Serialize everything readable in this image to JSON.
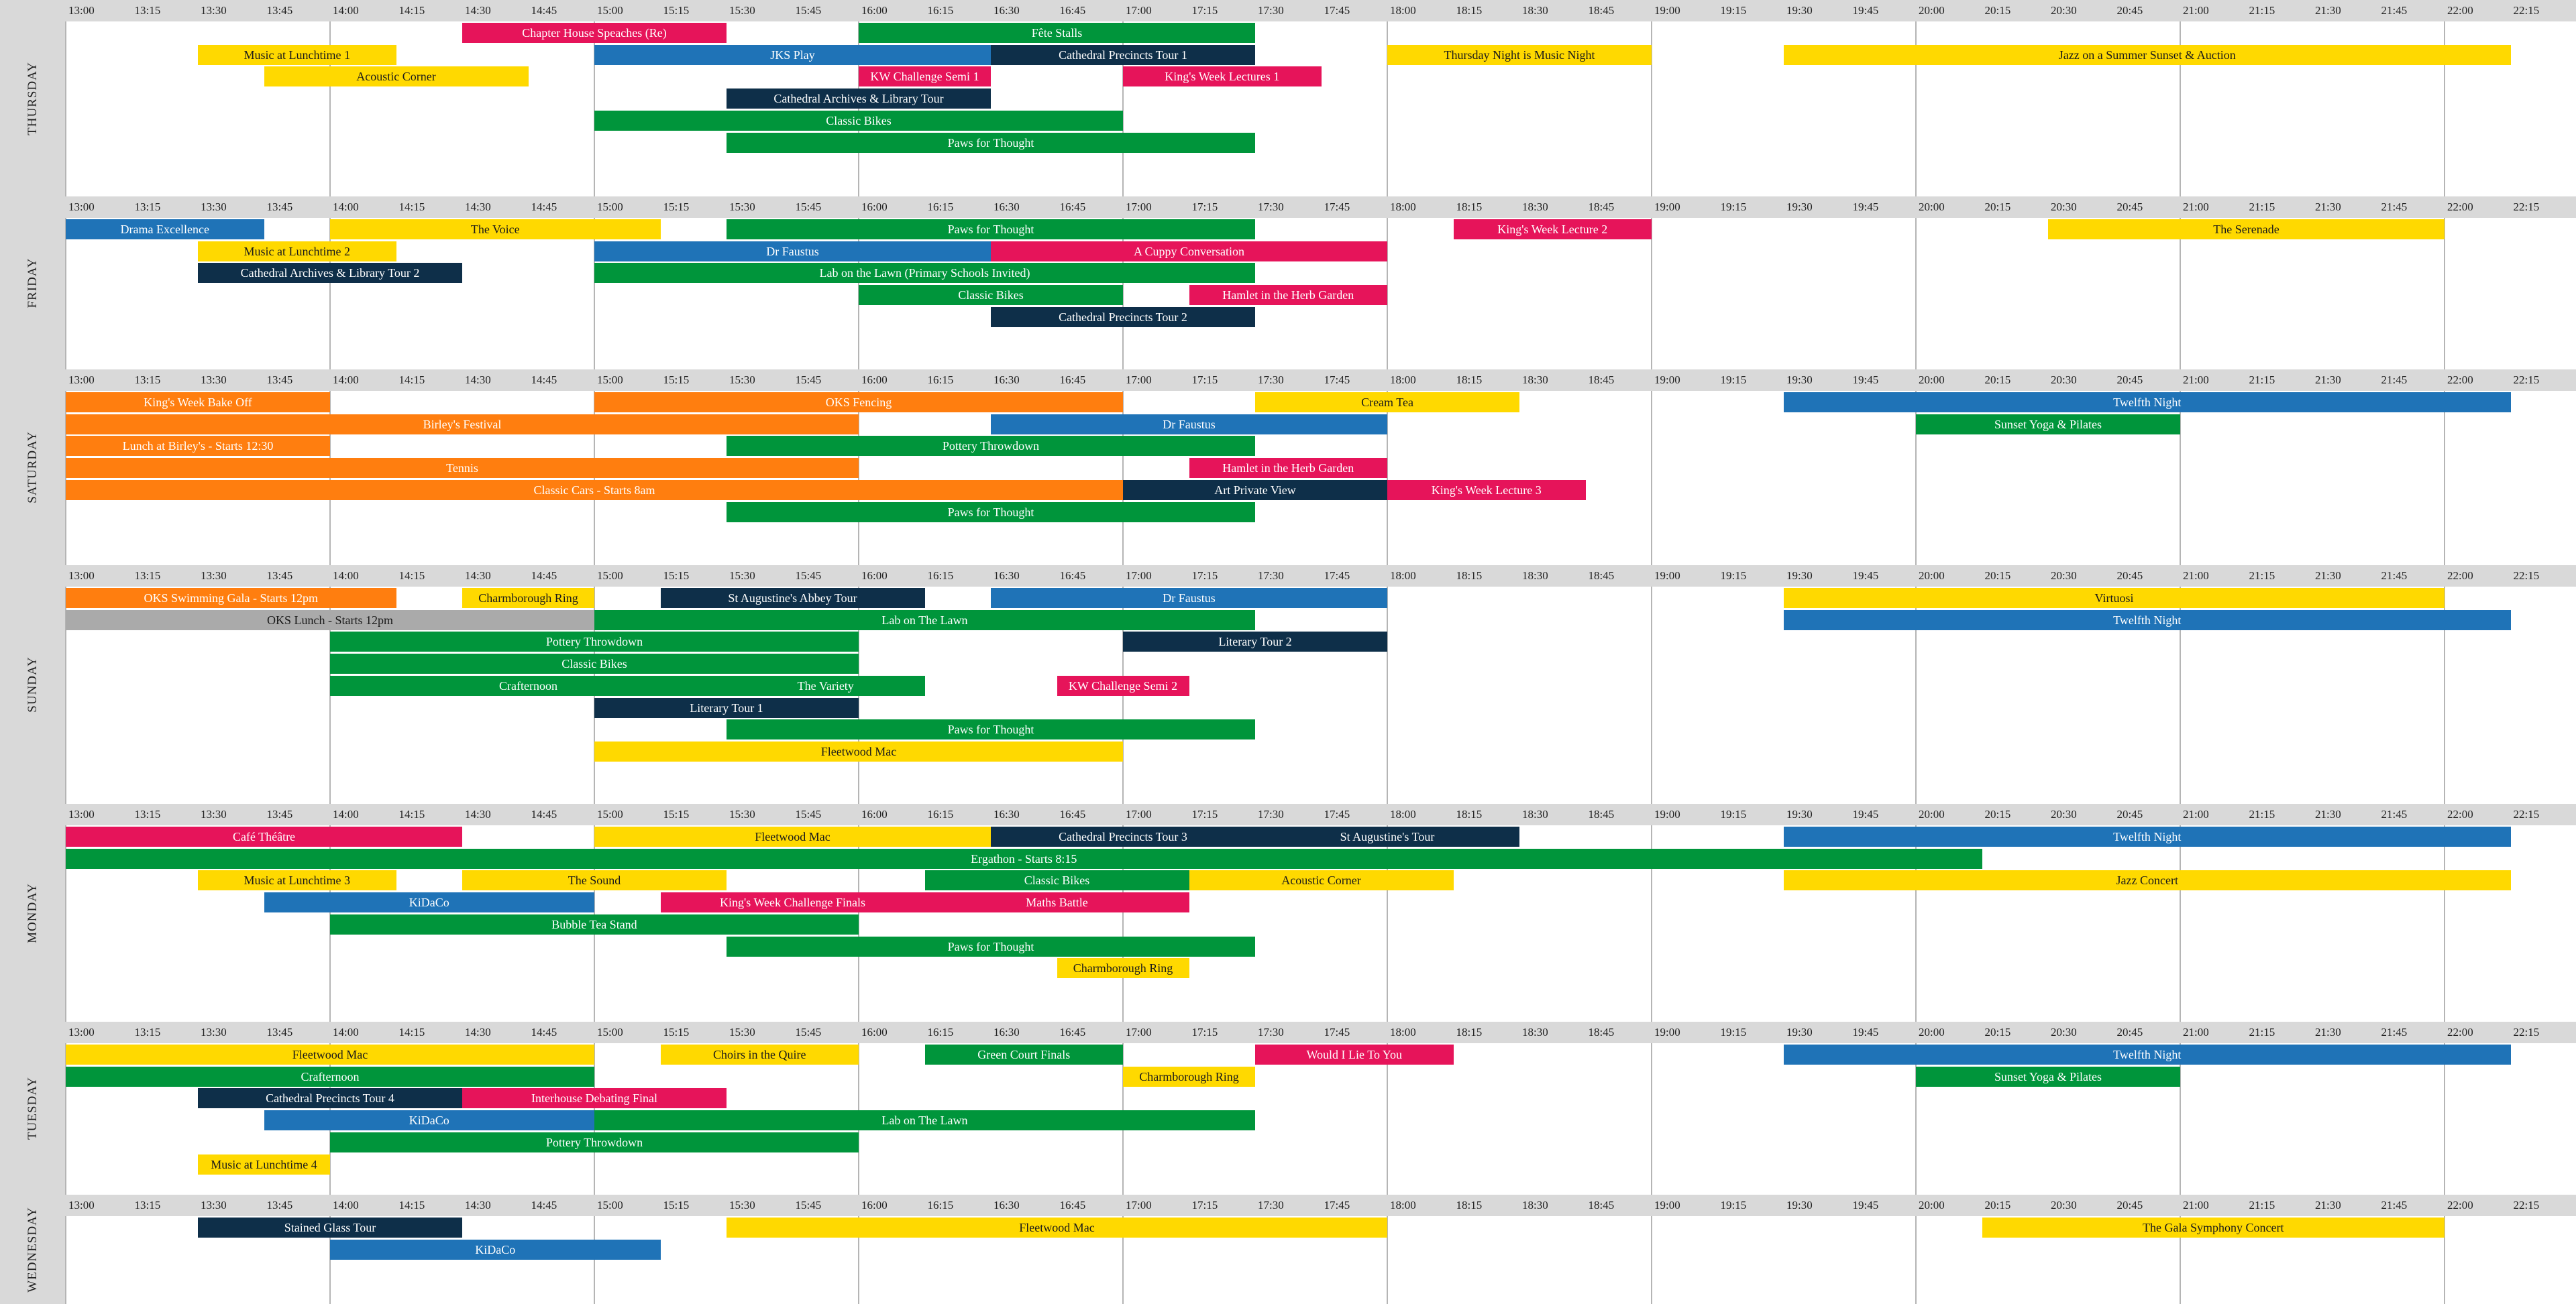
{
  "time_labels": [
    "13:00",
    "13:15",
    "13:30",
    "13:45",
    "14:00",
    "14:15",
    "14:30",
    "14:45",
    "15:00",
    "15:15",
    "15:30",
    "15:45",
    "16:00",
    "16:15",
    "16:30",
    "16:45",
    "17:00",
    "17:15",
    "17:30",
    "17:45",
    "18:00",
    "18:15",
    "18:30",
    "18:45",
    "19:00",
    "19:15",
    "19:30",
    "19:45",
    "20:00",
    "20:15",
    "20:30",
    "20:45",
    "21:00",
    "21:15",
    "21:30",
    "21:45",
    "22:00",
    "22:15"
  ],
  "colors": {
    "green": "#00953b",
    "blue": "#1f73b7",
    "navy": "#0e2f49",
    "pink": "#e6145a",
    "yellow": "#ffd900",
    "orange": "#ff7e0f",
    "grey": "#aaaaaa",
    "header": "#d9d9d9"
  },
  "days": [
    {
      "name": "THURSDAY",
      "events": [
        {
          "title": "Chapter House Speaches (Re)",
          "start": "14:30",
          "end": "15:30",
          "row": 0,
          "color": "pink"
        },
        {
          "title": "Fête Stalls",
          "start": "16:00",
          "end": "17:30",
          "row": 0,
          "color": "green"
        },
        {
          "title": "Music at Lunchtime 1",
          "start": "13:30",
          "end": "14:15",
          "row": 1,
          "color": "yellow"
        },
        {
          "title": "JKS Play",
          "start": "15:00",
          "end": "16:30",
          "row": 1,
          "color": "blue"
        },
        {
          "title": "Cathedral Precincts Tour 1",
          "start": "16:30",
          "end": "17:30",
          "row": 1,
          "color": "navy"
        },
        {
          "title": "Thursday Night is Music Night",
          "start": "18:00",
          "end": "19:00",
          "row": 1,
          "color": "yellow"
        },
        {
          "title": "Jazz on a Summer Sunset & Auction",
          "start": "19:30",
          "end": "22:15",
          "row": 1,
          "color": "yellow"
        },
        {
          "title": "Acoustic Corner",
          "start": "13:45",
          "end": "14:45",
          "row": 2,
          "color": "yellow"
        },
        {
          "title": "KW Challenge Semi 1",
          "start": "16:00",
          "end": "16:30",
          "row": 2,
          "color": "pink"
        },
        {
          "title": "King's Week Lectures 1",
          "start": "17:00",
          "end": "17:45",
          "row": 2,
          "color": "pink"
        },
        {
          "title": "Cathedral Archives & Library Tour",
          "start": "15:30",
          "end": "16:30",
          "row": 3,
          "color": "navy"
        },
        {
          "title": "Classic Bikes",
          "start": "15:00",
          "end": "17:00",
          "row": 4,
          "color": "green"
        },
        {
          "title": "Paws for Thought",
          "start": "15:30",
          "end": "17:30",
          "row": 5,
          "color": "green"
        }
      ]
    },
    {
      "name": "FRIDAY",
      "events": [
        {
          "title": "Drama Excellence",
          "start": "13:00",
          "end": "13:45",
          "row": 0,
          "color": "blue"
        },
        {
          "title": "The Voice",
          "start": "14:00",
          "end": "15:15",
          "row": 0,
          "color": "yellow"
        },
        {
          "title": "Paws for Thought",
          "start": "15:30",
          "end": "17:30",
          "row": 0,
          "color": "green"
        },
        {
          "title": "King's Week Lecture 2",
          "start": "18:15",
          "end": "19:00",
          "row": 0,
          "color": "pink"
        },
        {
          "title": "The Serenade",
          "start": "20:30",
          "end": "22:00",
          "row": 0,
          "color": "yellow"
        },
        {
          "title": "Music at Lunchtime 2",
          "start": "13:30",
          "end": "14:15",
          "row": 1,
          "color": "yellow"
        },
        {
          "title": "Dr Faustus",
          "start": "15:00",
          "end": "16:30",
          "row": 1,
          "color": "blue"
        },
        {
          "title": "A Cuppy Conversation",
          "start": "16:30",
          "end": "18:00",
          "row": 1,
          "color": "pink"
        },
        {
          "title": "Cathedral Archives & Library Tour 2",
          "start": "13:30",
          "end": "14:30",
          "row": 2,
          "color": "navy"
        },
        {
          "title": "Lab on the Lawn (Primary Schools Invited)",
          "start": "15:00",
          "end": "17:30",
          "row": 2,
          "color": "green"
        },
        {
          "title": "Classic Bikes",
          "start": "16:00",
          "end": "17:00",
          "row": 3,
          "color": "green"
        },
        {
          "title": "Hamlet in the Herb Garden",
          "start": "17:15",
          "end": "18:00",
          "row": 3,
          "color": "pink"
        },
        {
          "title": "Cathedral Precincts Tour 2",
          "start": "16:30",
          "end": "17:30",
          "row": 4,
          "color": "navy"
        }
      ]
    },
    {
      "name": "SATURDAY",
      "events": [
        {
          "title": "King's Week Bake Off",
          "start": "13:00",
          "end": "14:00",
          "row": 0,
          "color": "orange"
        },
        {
          "title": "OKS Fencing",
          "start": "15:00",
          "end": "17:00",
          "row": 0,
          "color": "orange"
        },
        {
          "title": "Cream Tea",
          "start": "17:30",
          "end": "18:30",
          "row": 0,
          "color": "yellow"
        },
        {
          "title": "Twelfth Night",
          "start": "19:30",
          "end": "22:15",
          "row": 0,
          "color": "blue"
        },
        {
          "title": "Birley's Festival",
          "start": "13:00",
          "end": "16:00",
          "row": 1,
          "color": "orange"
        },
        {
          "title": "Dr Faustus",
          "start": "16:30",
          "end": "18:00",
          "row": 1,
          "color": "blue"
        },
        {
          "title": "Sunset Yoga & Pilates",
          "start": "20:00",
          "end": "21:00",
          "row": 1,
          "color": "green"
        },
        {
          "title": "Lunch at Birley's - Starts 12:30",
          "start": "13:00",
          "end": "14:00",
          "row": 2,
          "color": "orange"
        },
        {
          "title": "Pottery Throwdown",
          "start": "15:30",
          "end": "17:30",
          "row": 2,
          "color": "green"
        },
        {
          "title": "Tennis",
          "start": "13:00",
          "end": "16:00",
          "row": 3,
          "color": "orange"
        },
        {
          "title": "Hamlet in the Herb Garden",
          "start": "17:15",
          "end": "18:00",
          "row": 3,
          "color": "pink"
        },
        {
          "title": "Classic Cars - Starts 8am",
          "start": "13:00",
          "end": "17:00",
          "row": 4,
          "color": "orange"
        },
        {
          "title": "Art Private View",
          "start": "17:00",
          "end": "18:00",
          "row": 4,
          "color": "navy"
        },
        {
          "title": "King's Week Lecture 3",
          "start": "18:00",
          "end": "18:45",
          "row": 4,
          "color": "pink"
        },
        {
          "title": "Paws for Thought",
          "start": "15:30",
          "end": "17:30",
          "row": 5,
          "color": "green"
        }
      ]
    },
    {
      "name": "SUNDAY",
      "events": [
        {
          "title": "OKS Swimming Gala - Starts 12pm",
          "start": "13:00",
          "end": "14:15",
          "row": 0,
          "color": "orange"
        },
        {
          "title": "Charmborough Ring",
          "start": "14:30",
          "end": "15:00",
          "row": 0,
          "color": "yellow"
        },
        {
          "title": "St Augustine's Abbey Tour",
          "start": "15:15",
          "end": "16:15",
          "row": 0,
          "color": "navy"
        },
        {
          "title": "Dr Faustus",
          "start": "16:30",
          "end": "18:00",
          "row": 0,
          "color": "blue"
        },
        {
          "title": "Virtuosi",
          "start": "19:30",
          "end": "22:00",
          "row": 0,
          "color": "yellow"
        },
        {
          "title": "OKS Lunch - Starts 12pm",
          "start": "13:00",
          "end": "15:00",
          "row": 1,
          "color": "grey"
        },
        {
          "title": "Lab on The Lawn",
          "start": "15:00",
          "end": "17:30",
          "row": 1,
          "color": "green"
        },
        {
          "title": "Twelfth Night",
          "start": "19:30",
          "end": "22:15",
          "row": 1,
          "color": "blue"
        },
        {
          "title": "Pottery Throwdown",
          "start": "14:00",
          "end": "16:00",
          "row": 2,
          "color": "green"
        },
        {
          "title": "Literary Tour 2",
          "start": "17:00",
          "end": "18:00",
          "row": 2,
          "color": "navy"
        },
        {
          "title": "Classic Bikes",
          "start": "14:00",
          "end": "16:00",
          "row": 3,
          "color": "green"
        },
        {
          "title": "Crafternoon",
          "start": "14:00",
          "end": "15:30",
          "row": 4,
          "color": "green"
        },
        {
          "title": "The Variety",
          "start": "15:30",
          "end": "16:15",
          "row": 4,
          "color": "green"
        },
        {
          "title": "KW Challenge Semi 2",
          "start": "16:45",
          "end": "17:15",
          "row": 4,
          "color": "pink"
        },
        {
          "title": "Literary Tour 1",
          "start": "15:00",
          "end": "16:00",
          "row": 5,
          "color": "navy"
        },
        {
          "title": "Paws for Thought",
          "start": "15:30",
          "end": "17:30",
          "row": 6,
          "color": "green"
        },
        {
          "title": "Fleetwood Mac",
          "start": "15:00",
          "end": "17:00",
          "row": 7,
          "color": "yellow"
        }
      ]
    },
    {
      "name": "MONDAY",
      "events": [
        {
          "title": "Café Théâtre",
          "start": "13:00",
          "end": "14:30",
          "row": 0,
          "color": "pink"
        },
        {
          "title": "Fleetwood Mac",
          "start": "15:00",
          "end": "16:30",
          "row": 0,
          "color": "yellow"
        },
        {
          "title": "Cathedral Precincts Tour 3",
          "start": "16:30",
          "end": "17:30",
          "row": 0,
          "color": "navy"
        },
        {
          "title": "St Augustine's Tour",
          "start": "17:30",
          "end": "18:30",
          "row": 0,
          "color": "navy"
        },
        {
          "title": "Twelfth Night",
          "start": "19:30",
          "end": "22:15",
          "row": 0,
          "color": "blue"
        },
        {
          "title": "Ergathon - Starts 8:15",
          "start": "13:00",
          "end": "20:15",
          "row": 1,
          "color": "green"
        },
        {
          "title": "Music at Lunchtime 3",
          "start": "13:30",
          "end": "14:15",
          "row": 2,
          "color": "yellow"
        },
        {
          "title": "The Sound",
          "start": "14:30",
          "end": "15:30",
          "row": 2,
          "color": "yellow"
        },
        {
          "title": "Classic Bikes",
          "start": "16:15",
          "end": "17:15",
          "row": 2,
          "color": "green"
        },
        {
          "title": "Acoustic Corner",
          "start": "17:15",
          "end": "18:15",
          "row": 2,
          "color": "yellow"
        },
        {
          "title": "Jazz Concert",
          "start": "19:30",
          "end": "22:15",
          "row": 2,
          "color": "yellow"
        },
        {
          "title": "KiDaCo",
          "start": "13:45",
          "end": "15:00",
          "row": 3,
          "color": "blue"
        },
        {
          "title": "King's Week Challenge Finals",
          "start": "15:15",
          "end": "16:15",
          "row": 3,
          "color": "pink"
        },
        {
          "title": "Maths Battle",
          "start": "16:15",
          "end": "17:15",
          "row": 3,
          "color": "pink"
        },
        {
          "title": "Bubble Tea Stand",
          "start": "14:00",
          "end": "16:00",
          "row": 4,
          "color": "green"
        },
        {
          "title": "Paws for Thought",
          "start": "15:30",
          "end": "17:30",
          "row": 5,
          "color": "green"
        },
        {
          "title": "Charmborough Ring",
          "start": "16:45",
          "end": "17:15",
          "row": 6,
          "color": "yellow"
        }
      ]
    },
    {
      "name": "TUESDAY",
      "events": [
        {
          "title": "Fleetwood Mac",
          "start": "13:00",
          "end": "15:00",
          "row": 0,
          "color": "yellow"
        },
        {
          "title": "Choirs in the Quire",
          "start": "15:15",
          "end": "16:00",
          "row": 0,
          "color": "yellow"
        },
        {
          "title": "Green Court Finals",
          "start": "16:15",
          "end": "17:00",
          "row": 0,
          "color": "green"
        },
        {
          "title": "Would I Lie To You",
          "start": "17:30",
          "end": "18:15",
          "row": 0,
          "color": "pink"
        },
        {
          "title": "Twelfth Night",
          "start": "19:30",
          "end": "22:15",
          "row": 0,
          "color": "blue"
        },
        {
          "title": "Crafternoon",
          "start": "13:00",
          "end": "15:00",
          "row": 1,
          "color": "green"
        },
        {
          "title": "Charmborough Ring",
          "start": "17:00",
          "end": "17:30",
          "row": 1,
          "color": "yellow"
        },
        {
          "title": "Sunset Yoga & Pilates",
          "start": "20:00",
          "end": "21:00",
          "row": 1,
          "color": "green"
        },
        {
          "title": "Cathedral Precincts Tour 4",
          "start": "13:30",
          "end": "14:30",
          "row": 2,
          "color": "navy"
        },
        {
          "title": "Interhouse Debating Final",
          "start": "14:30",
          "end": "15:30",
          "row": 2,
          "color": "pink"
        },
        {
          "title": "KiDaCo",
          "start": "13:45",
          "end": "15:00",
          "row": 3,
          "color": "blue"
        },
        {
          "title": "Lab on The Lawn",
          "start": "15:00",
          "end": "17:30",
          "row": 3,
          "color": "green"
        },
        {
          "title": "Pottery Throwdown",
          "start": "14:00",
          "end": "16:00",
          "row": 4,
          "color": "green"
        },
        {
          "title": "Music at Lunchtime 4",
          "start": "13:30",
          "end": "14:00",
          "row": 5,
          "color": "yellow"
        }
      ]
    },
    {
      "name": "WEDNESDAY",
      "events": [
        {
          "title": "Stained Glass Tour",
          "start": "13:30",
          "end": "14:30",
          "row": 0,
          "color": "navy"
        },
        {
          "title": "Fleetwood Mac",
          "start": "15:30",
          "end": "18:00",
          "row": 0,
          "color": "yellow"
        },
        {
          "title": "The Gala Symphony Concert",
          "start": "20:15",
          "end": "22:00",
          "row": 0,
          "color": "yellow"
        },
        {
          "title": "KiDaCo",
          "start": "14:00",
          "end": "15:15",
          "row": 1,
          "color": "blue"
        }
      ]
    }
  ]
}
